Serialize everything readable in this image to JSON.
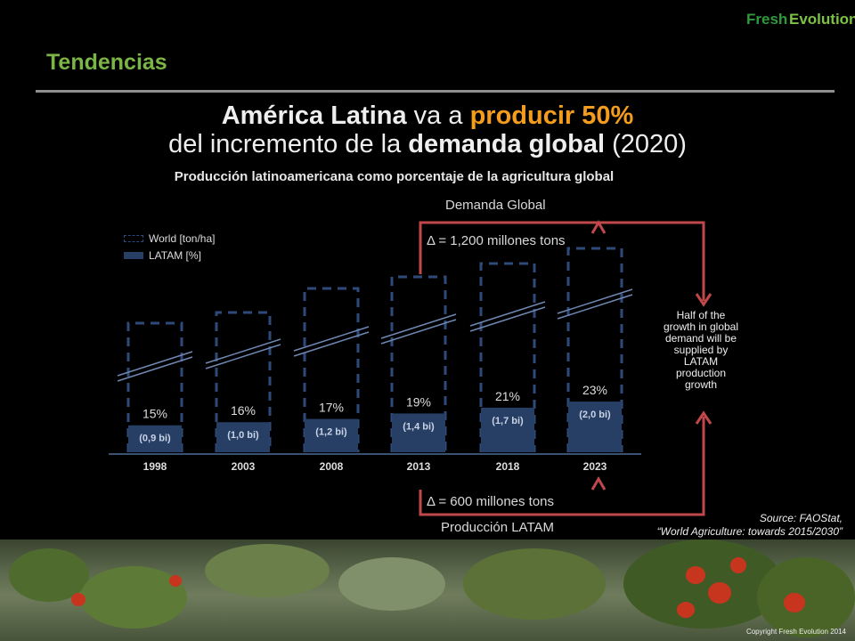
{
  "logo": {
    "part1": "Fresh",
    "part2": "Evolution"
  },
  "section_title": "Tendencias",
  "headline": {
    "l1_a": "América Latina",
    "l1_b": " va a ",
    "l1_c": "producir 50%",
    "l2_a": "del incremento de la ",
    "l2_b": "demanda global",
    "l2_c": " (2020)"
  },
  "subtitle": "Producción latinoamericana  como porcentaje de la agricultura global",
  "legend": {
    "world": "World [ton/ha]",
    "latam": "LATAM [%]"
  },
  "annotations": {
    "demanda_global": "Demanda Global",
    "delta_demand": "Δ = 1,200 millones tons",
    "delta_production": "Δ = 600  millones tons",
    "produccion_latam": "Producción LATAM",
    "side_note": [
      "Half of the",
      "growth in global",
      "demand will be",
      "supplied by",
      "LATAM",
      "production",
      "growth"
    ]
  },
  "source": {
    "line1": "Source: FAOStat,",
    "line2": "“World Agriculture: towards 2015/2030”"
  },
  "copyright": "Copyright Fresh Evolution 2014",
  "colors": {
    "latam_bar": "#283f65",
    "world_dash": "#2e4a7a",
    "accent_orange": "#f39c1e",
    "arrow_red": "#c0484a",
    "title_green": "#7bb547"
  },
  "chart_data": {
    "type": "bar",
    "categories": [
      "1998",
      "2003",
      "2008",
      "2013",
      "2018",
      "2023"
    ],
    "series": [
      {
        "name": "World [ton/ha]",
        "style": "dashed-outline",
        "values": [
          null,
          null,
          null,
          null,
          null,
          null
        ]
      },
      {
        "name": "LATAM [%]",
        "style": "solid",
        "values": [
          15,
          16,
          17,
          19,
          21,
          23
        ],
        "pct_labels": [
          "15%",
          "16%",
          "17%",
          "19%",
          "21%",
          "23%"
        ],
        "volume_labels": [
          "(0,9 bi)",
          "(1,0 bi)",
          "(1,2 bi)",
          "(1,4 bi)",
          "(1,7 bi)",
          "(2,0 bi)"
        ]
      }
    ],
    "axis_break": true,
    "legend_position": "top-left",
    "grid": false
  }
}
